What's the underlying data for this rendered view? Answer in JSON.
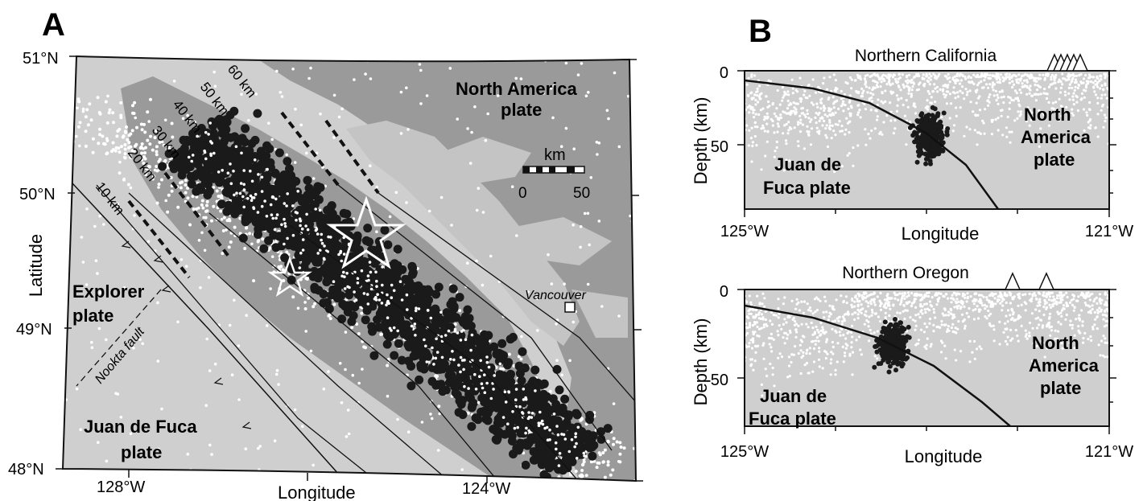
{
  "panel_a": {
    "letter": "A",
    "lat_ticks": [
      "51°N",
      "50°N",
      "49°N",
      "48°N"
    ],
    "lon_ticks": [
      "128°W",
      "124°W"
    ],
    "xlabel": "Longitude",
    "ylabel": "Latitude",
    "plates": {
      "north_america": [
        "North America",
        "plate"
      ],
      "explorer": [
        "Explorer",
        "plate"
      ],
      "juan_de_fuca": [
        "Juan de Fuca",
        "plate"
      ]
    },
    "fault": "Nookta fault",
    "city": "Vancouver",
    "contours": [
      "10 km",
      "20 km",
      "30 km",
      "40 km",
      "50 km",
      "60 km"
    ],
    "scale_bar": {
      "unit": "km",
      "min": "0",
      "max": "50"
    }
  },
  "panel_b": {
    "letter": "B",
    "sections": [
      {
        "title": "Northern California",
        "ylabel": "Depth (km)",
        "yticks": [
          "0",
          "50"
        ],
        "xticks": [
          "125°W",
          "121°W"
        ],
        "xlabel": "Longitude",
        "left_plate": [
          "Juan de",
          "Fuca plate"
        ],
        "right_plate": [
          "North",
          "America",
          "plate"
        ],
        "volcanoes": 5
      },
      {
        "title": "Northern Oregon",
        "ylabel": "Depth (km)",
        "yticks": [
          "0",
          "50"
        ],
        "xticks": [
          "125°W",
          "121°W"
        ],
        "xlabel": "Longitude",
        "left_plate": [
          "Juan de",
          "Fuca plate"
        ],
        "right_plate": [
          "North",
          "America",
          "plate"
        ],
        "volcanoes": 2
      }
    ]
  },
  "colors": {
    "ocean": "#cfcfcf",
    "land": "#9a9a9a",
    "inlet": "#c4c4c4",
    "tremor": "#1a1a1a",
    "seismicity": "#ffffff",
    "frame": "#111111"
  }
}
